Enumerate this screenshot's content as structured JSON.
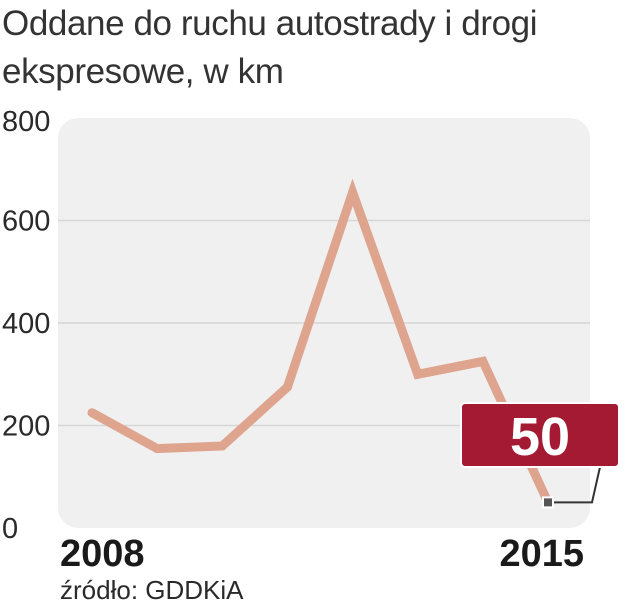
{
  "title": "Oddane do ruchu autostrady i drogi ekspresowe, w km",
  "source": "źródło: GDDKiA",
  "colors": {
    "line": "#dea48e",
    "panel": "#f0f0f0",
    "grid": "#d6d6d6",
    "callout": "#a31a32",
    "marker": "#555555"
  },
  "chart_data": {
    "type": "line",
    "title": "Oddane do ruchu autostrady i drogi ekspresowe, w km",
    "xlabel": "",
    "ylabel": "",
    "x": [
      2008,
      2009,
      2010,
      2011,
      2012,
      2013,
      2014,
      2015
    ],
    "series": [
      {
        "name": "km",
        "values": [
          225,
          155,
          160,
          275,
          655,
          300,
          325,
          50
        ]
      }
    ],
    "ylim": [
      0,
      800
    ],
    "yticks": [
      "0",
      "200",
      "400",
      "600",
      "800"
    ],
    "xtick_labels": [
      "2008",
      "2015"
    ],
    "grid": true,
    "annotation": {
      "label": "50",
      "year": 2015,
      "value": 50
    }
  }
}
